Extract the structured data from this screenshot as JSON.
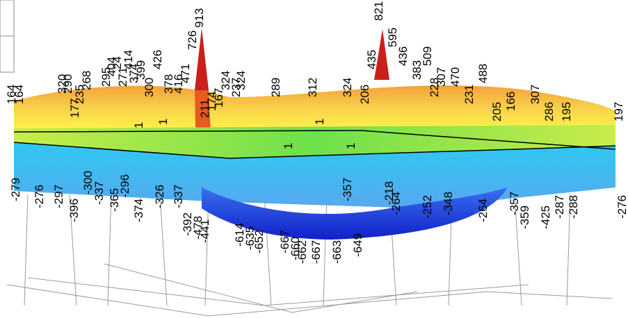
{
  "labels": [
    "164",
    "164",
    "320",
    "290",
    "177",
    "235",
    "268",
    "295",
    "404",
    "24",
    "271",
    "414",
    "374",
    "399",
    "300",
    "426",
    "378",
    "416",
    "471",
    "726",
    "913",
    "211",
    "174",
    "167",
    "324",
    "237",
    "324",
    "289",
    "312",
    "324",
    "206",
    "435",
    "821",
    "595",
    "436",
    "383",
    "509",
    "228",
    "307",
    "470",
    "231",
    "488",
    "205",
    "166",
    "307",
    "286",
    "195",
    "197",
    "1",
    "1",
    "1",
    "1",
    "1",
    "-279",
    "-276",
    "-297",
    "-396",
    "-300",
    "-337",
    "-365",
    "-296",
    "-374",
    "-326",
    "-337",
    "-392",
    "-478",
    "-441",
    "-614",
    "-635",
    "-652",
    "-667",
    "-660",
    "-662",
    "-667",
    "-663",
    "-649",
    "-357",
    "-218",
    "-264",
    "-252",
    "-348",
    "-264",
    "-357",
    "-359",
    "-425",
    "-287",
    "-288",
    "-276"
  ]
}
